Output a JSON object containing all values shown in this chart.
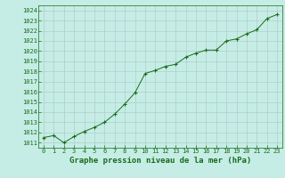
{
  "x": [
    0,
    1,
    2,
    3,
    4,
    5,
    6,
    7,
    8,
    9,
    10,
    11,
    12,
    13,
    14,
    15,
    16,
    17,
    18,
    19,
    20,
    21,
    22,
    23
  ],
  "y": [
    1011.5,
    1011.7,
    1011.0,
    1011.6,
    1012.1,
    1012.5,
    1013.0,
    1013.8,
    1014.8,
    1015.9,
    1017.8,
    1018.1,
    1018.5,
    1018.7,
    1019.4,
    1019.8,
    1020.1,
    1020.1,
    1021.0,
    1021.2,
    1021.7,
    1022.1,
    1023.2,
    1023.6
  ],
  "ylim": [
    1010.5,
    1024.5
  ],
  "xlim": [
    -0.5,
    23.5
  ],
  "yticks": [
    1011,
    1012,
    1013,
    1014,
    1015,
    1016,
    1017,
    1018,
    1019,
    1020,
    1021,
    1022,
    1023,
    1024
  ],
  "xticks": [
    0,
    1,
    2,
    3,
    4,
    5,
    6,
    7,
    8,
    9,
    10,
    11,
    12,
    13,
    14,
    15,
    16,
    17,
    18,
    19,
    20,
    21,
    22,
    23
  ],
  "line_color": "#1a6b1a",
  "marker": "+",
  "bg_color": "#c5ede6",
  "grid_color": "#b0ccc8",
  "title": "Graphe pression niveau de la mer (hPa)",
  "title_color": "#1a6b1a",
  "title_fontsize": 6.5,
  "tick_color": "#1a6b1a",
  "tick_fontsize": 5.0
}
